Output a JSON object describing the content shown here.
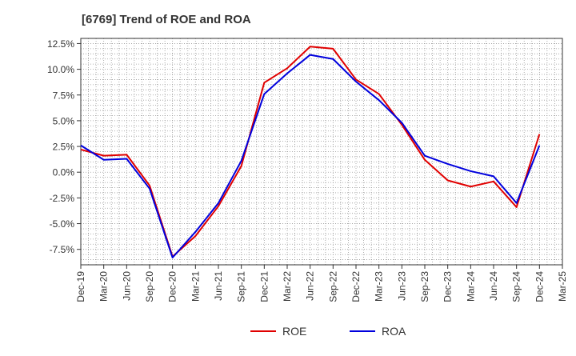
{
  "chart_data": {
    "type": "line",
    "title": "[6769]  Trend of ROE and ROA",
    "xlabel": "",
    "ylabel": "",
    "x": [
      "Dec-19",
      "Mar-20",
      "Jun-20",
      "Sep-20",
      "Dec-20",
      "Mar-21",
      "Jun-21",
      "Sep-21",
      "Dec-21",
      "Mar-22",
      "Jun-22",
      "Sep-22",
      "Dec-22",
      "Mar-23",
      "Jun-23",
      "Sep-23",
      "Dec-23",
      "Mar-24",
      "Jun-24",
      "Sep-24",
      "Dec-24",
      "Mar-25"
    ],
    "ylim": [
      -9.0,
      13.0
    ],
    "yticks": [
      12.5,
      10.0,
      7.5,
      5.0,
      2.5,
      0.0,
      -2.5,
      -5.0,
      -7.5
    ],
    "ytick_labels": [
      "12.5%",
      "10.0%",
      "7.5%",
      "5.0%",
      "2.5%",
      "0.0%",
      "-2.5%",
      "-5.0%",
      "-7.5%"
    ],
    "grid": true,
    "legend": "bottom-center",
    "series": [
      {
        "name": "ROE",
        "color": "#e00000",
        "values": [
          2.2,
          1.6,
          1.7,
          -1.3,
          -8.2,
          -6.2,
          -3.3,
          0.6,
          8.7,
          10.1,
          12.2,
          12.0,
          9.0,
          7.6,
          4.6,
          1.2,
          -0.8,
          -1.4,
          -0.9,
          -3.4,
          3.7,
          null
        ]
      },
      {
        "name": "ROA",
        "color": "#0000dd",
        "values": [
          2.6,
          1.2,
          1.3,
          -1.6,
          -8.3,
          -5.8,
          -3.0,
          1.1,
          7.6,
          9.6,
          11.4,
          11.0,
          8.8,
          7.0,
          4.8,
          1.6,
          0.8,
          0.1,
          -0.4,
          -3.0,
          2.6,
          null
        ]
      }
    ]
  }
}
